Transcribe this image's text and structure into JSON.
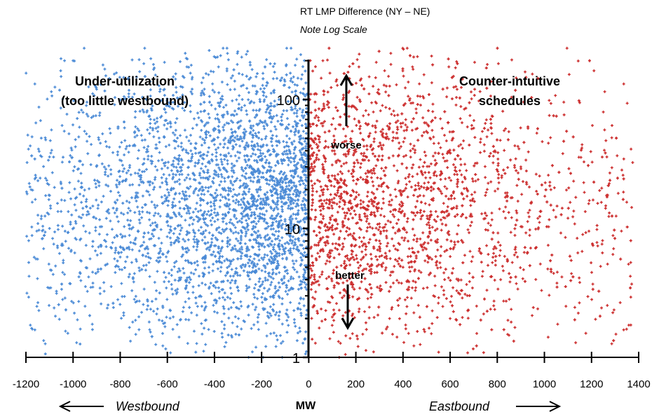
{
  "chart_data": {
    "type": "scatter",
    "title": "RT LMP Difference (NY – NE)",
    "subtitle": "Note Log Scale",
    "xlabel": "MW",
    "xlim": [
      -1200,
      1400
    ],
    "ylim": [
      1,
      250
    ],
    "y_scale": "log",
    "x_ticks": [
      "-1200",
      "-1000",
      "-800",
      "-600",
      "-400",
      "-200",
      "0",
      "200",
      "400",
      "600",
      "800",
      "1000",
      "1200",
      "1400"
    ],
    "y_tick_labels": [
      "1",
      "10",
      "100"
    ],
    "grid": false,
    "series": [
      {
        "color": "#4a8ad6",
        "marker": "plus",
        "x_range": [
          -1200,
          0
        ],
        "approx_points": 3200,
        "density_peak_x": -250,
        "sample_points": [
          [
            -1000,
            200
          ],
          [
            -900,
            120
          ],
          [
            -700,
            80
          ],
          [
            -500,
            40
          ],
          [
            -400,
            15
          ],
          [
            -300,
            8
          ],
          [
            -200,
            12
          ],
          [
            -100,
            5
          ],
          [
            -150,
            3
          ],
          [
            -800,
            6
          ],
          [
            -1100,
            10
          ],
          [
            -600,
            20
          ]
        ]
      },
      {
        "color": "#cc2d2d",
        "marker": "plus",
        "x_range": [
          0,
          1380
        ],
        "approx_points": 2400,
        "density_peak_x": 150,
        "sample_points": [
          [
            100,
            40
          ],
          [
            200,
            15
          ],
          [
            300,
            8
          ],
          [
            400,
            5
          ],
          [
            500,
            20
          ],
          [
            700,
            60
          ],
          [
            900,
            30
          ],
          [
            1100,
            12
          ],
          [
            1250,
            80
          ],
          [
            60,
            200
          ],
          [
            150,
            3
          ],
          [
            600,
            2
          ]
        ]
      }
    ],
    "annotations": {
      "top_left": [
        "Under-utilization",
        "(too little westbound)"
      ],
      "top_right": [
        "Counter-intuitive",
        "schedules"
      ],
      "worse": "worse",
      "better": "better",
      "west": "Westbound",
      "east": "Eastbound"
    }
  },
  "colors": {
    "west": "#4a8ad6",
    "east": "#cc2d2d",
    "axis": "#000000"
  }
}
